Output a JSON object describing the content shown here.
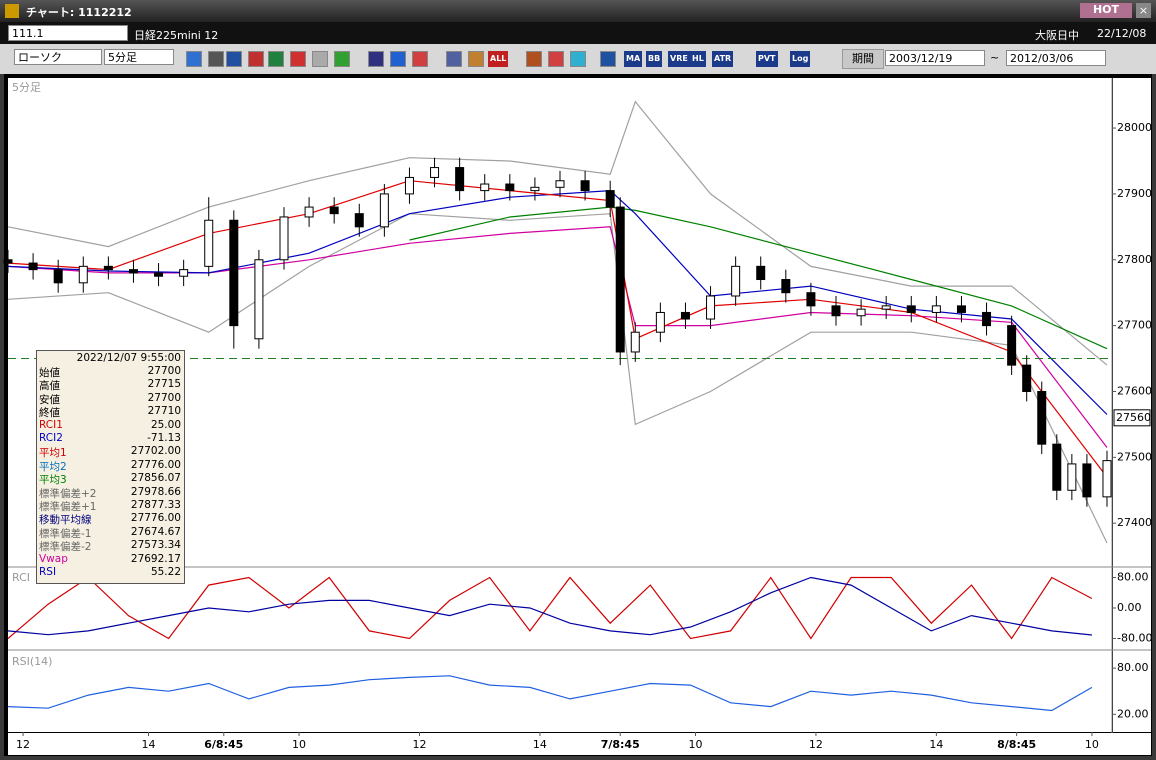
{
  "window": {
    "title": "チャート: 1112212",
    "badge": "HOT"
  },
  "toolbar1": {
    "symbol": "111.1",
    "name": "日経225mini 12",
    "session": "大阪日中",
    "date": "22/12/08"
  },
  "toolbar2": {
    "chart_type": "ローソク",
    "interval": "5分足",
    "buttons": [
      "ALL",
      "MA",
      "BB",
      "VRE",
      "HL",
      "ATR",
      "PVT",
      "Log"
    ],
    "period": "期間",
    "from": "2003/12/19",
    "tilde": "~",
    "to": "2012/03/06"
  },
  "info_box": {
    "title": "2022/12/07 9:55:00",
    "rows": [
      {
        "label": "始値",
        "value": "27700",
        "color": "#000"
      },
      {
        "label": "高値",
        "value": "27715",
        "color": "#000"
      },
      {
        "label": "安値",
        "value": "27700",
        "color": "#000"
      },
      {
        "label": "終値",
        "value": "27710",
        "color": "#000"
      },
      {
        "label": "RCI1",
        "value": "25.00",
        "color": "#d00000"
      },
      {
        "label": "RCI2",
        "value": "-71.13",
        "color": "#0000c0"
      },
      {
        "label": "平均1",
        "value": "27702.00",
        "color": "#d00000"
      },
      {
        "label": "平均2",
        "value": "27776.00",
        "color": "#0070c0"
      },
      {
        "label": "平均3",
        "value": "27856.07",
        "color": "#008000"
      },
      {
        "label": "標準偏差+2",
        "value": "27978.66",
        "color": "#666"
      },
      {
        "label": "標準偏差+1",
        "value": "27877.33",
        "color": "#666"
      },
      {
        "label": "移動平均線",
        "value": "27776.00",
        "color": "#000080"
      },
      {
        "label": "標準偏差-1",
        "value": "27674.67",
        "color": "#666"
      },
      {
        "label": "標準偏差-2",
        "value": "27573.34",
        "color": "#666"
      },
      {
        "label": "Vwap",
        "value": "27692.17",
        "color": "#d000a0"
      },
      {
        "label": "RSI",
        "value": "55.22",
        "color": "#0000c0"
      }
    ]
  },
  "chart_data": [
    {
      "type": "candlestick",
      "label": "5分足",
      "x": [
        0,
        5,
        10,
        15,
        20,
        25,
        30,
        35,
        40,
        45,
        50,
        55,
        60,
        65,
        70,
        75,
        80,
        85,
        90,
        95,
        100,
        105,
        110,
        115,
        120,
        122,
        125,
        130,
        135,
        140,
        145,
        150,
        155,
        160,
        165,
        170,
        175,
        180,
        185,
        190,
        195,
        200,
        203,
        206,
        209,
        212,
        215,
        219
      ],
      "open": [
        27800,
        27795,
        27785,
        27765,
        27790,
        27785,
        27780,
        27775,
        27790,
        27860,
        27680,
        27800,
        27865,
        27880,
        27870,
        27850,
        27900,
        27925,
        27940,
        27905,
        27915,
        27905,
        27910,
        27920,
        27905,
        27880,
        27660,
        27690,
        27720,
        27710,
        27745,
        27790,
        27770,
        27750,
        27730,
        27715,
        27725,
        27730,
        27720,
        27730,
        27720,
        27700,
        27640,
        27600,
        27520,
        27450,
        27490,
        27440
      ],
      "high": [
        27815,
        27810,
        27800,
        27805,
        27805,
        27800,
        27795,
        27800,
        27895,
        27875,
        27815,
        27880,
        27895,
        27895,
        27885,
        27915,
        27940,
        27955,
        27955,
        27930,
        27930,
        27925,
        27935,
        27935,
        27920,
        27895,
        27705,
        27735,
        27735,
        27760,
        27805,
        27805,
        27785,
        27765,
        27745,
        27740,
        27745,
        27745,
        27745,
        27745,
        27735,
        27715,
        27655,
        27615,
        27535,
        27505,
        27505,
        27510
      ],
      "low": [
        27780,
        27770,
        27750,
        27750,
        27770,
        27765,
        27760,
        27760,
        27775,
        27665,
        27665,
        27785,
        27850,
        27855,
        27835,
        27835,
        27885,
        27910,
        27890,
        27890,
        27890,
        27890,
        27895,
        27890,
        27865,
        27640,
        27645,
        27675,
        27695,
        27695,
        27730,
        27755,
        27735,
        27715,
        27700,
        27700,
        27710,
        27705,
        27705,
        27705,
        27685,
        27625,
        27585,
        27505,
        27435,
        27435,
        27425,
        27425
      ],
      "close": [
        27795,
        27785,
        27765,
        27790,
        27785,
        27780,
        27775,
        27785,
        27860,
        27700,
        27800,
        27865,
        27880,
        27870,
        27850,
        27900,
        27925,
        27940,
        27905,
        27915,
        27905,
        27910,
        27920,
        27905,
        27880,
        27660,
        27690,
        27720,
        27710,
        27745,
        27790,
        27770,
        27750,
        27730,
        27715,
        27725,
        27730,
        27720,
        27730,
        27720,
        27700,
        27640,
        27600,
        27520,
        27450,
        27490,
        27440,
        27495
      ],
      "overlay_x": [
        0,
        20,
        40,
        60,
        80,
        100,
        120,
        125,
        140,
        160,
        180,
        200,
        219
      ],
      "overlays": [
        {
          "color": "#a0a0a0",
          "values": [
            27850,
            27820,
            27880,
            27920,
            27955,
            27950,
            27930,
            28040,
            27900,
            27790,
            27760,
            27760,
            27640
          ]
        },
        {
          "color": "#a0a0a0",
          "values": [
            27740,
            27750,
            27690,
            27790,
            27870,
            27860,
            27870,
            27550,
            27600,
            27690,
            27690,
            27670,
            27370
          ]
        },
        {
          "color": "#008000",
          "values": [
            null,
            null,
            null,
            null,
            27830,
            27865,
            27880,
            27875,
            27850,
            27810,
            27770,
            27730,
            27665
          ]
        },
        {
          "color": "#d000a0",
          "values": [
            27790,
            27780,
            27780,
            27800,
            27825,
            27840,
            27850,
            27700,
            27700,
            27720,
            27715,
            27705,
            27515
          ]
        },
        {
          "color": "#0000c0",
          "values": [
            27790,
            27783,
            27780,
            27810,
            27870,
            27895,
            27905,
            27870,
            27745,
            27760,
            27725,
            27710,
            27565
          ]
        },
        {
          "color": "#e00000",
          "values": [
            27795,
            27785,
            27840,
            27870,
            27920,
            27905,
            27890,
            27680,
            27730,
            27740,
            27720,
            27660,
            27470
          ]
        }
      ],
      "xlim": [
        0,
        220
      ],
      "ylim": [
        27335,
        28076
      ],
      "yticks": [
        27400,
        27500,
        27600,
        27700,
        27800,
        27900,
        28000
      ],
      "xticks": [
        {
          "value": 3,
          "label": "12"
        },
        {
          "value": 28,
          "label": "14"
        },
        {
          "value": 43,
          "label": "6/8:45"
        },
        {
          "value": 58,
          "label": "10"
        },
        {
          "value": 82,
          "label": "12"
        },
        {
          "value": 106,
          "label": "14"
        },
        {
          "value": 122,
          "label": "7/8:45"
        },
        {
          "value": 137,
          "label": "10"
        },
        {
          "value": 161,
          "label": "12"
        },
        {
          "value": 185,
          "label": "14"
        },
        {
          "value": 201,
          "label": "8/8:45"
        },
        {
          "value": 216,
          "label": "10"
        }
      ],
      "reference_line": 27650,
      "last_price": 27560
    },
    {
      "type": "line",
      "label": "RCI",
      "x": [
        0,
        8,
        16,
        24,
        32,
        40,
        48,
        56,
        64,
        72,
        80,
        88,
        96,
        104,
        112,
        120,
        128,
        136,
        144,
        152,
        160,
        168,
        176,
        184,
        192,
        200,
        208,
        216
      ],
      "ylim": [
        -105,
        105
      ],
      "yticks": [
        {
          "value": 80,
          "label": "80.00"
        },
        {
          "value": 0,
          "label": "0.00"
        },
        {
          "value": -80,
          "label": "-80.00"
        }
      ],
      "series": [
        {
          "color": "#d00000",
          "values": [
            -80,
            10,
            80,
            -20,
            -80,
            60,
            80,
            0,
            80,
            -60,
            -80,
            20,
            80,
            -60,
            80,
            -40,
            60,
            -80,
            -60,
            80,
            -80,
            80,
            80,
            -40,
            60,
            -80,
            80,
            25
          ]
        },
        {
          "color": "#0000a0",
          "values": [
            -60,
            -70,
            -60,
            -40,
            -20,
            0,
            -10,
            10,
            20,
            20,
            0,
            -20,
            10,
            0,
            -40,
            -60,
            -70,
            -50,
            -10,
            40,
            80,
            60,
            0,
            -60,
            -20,
            -40,
            -60,
            -71
          ]
        }
      ]
    },
    {
      "type": "line",
      "label": "RSI(14)",
      "x": [
        0,
        8,
        16,
        24,
        32,
        40,
        48,
        56,
        64,
        72,
        80,
        88,
        96,
        104,
        112,
        120,
        128,
        136,
        144,
        152,
        160,
        168,
        176,
        184,
        192,
        200,
        208,
        216
      ],
      "ylim": [
        -3,
        101
      ],
      "yticks": [
        {
          "value": 80,
          "label": "80.00"
        },
        {
          "value": 20,
          "label": "20.00"
        }
      ],
      "series": [
        {
          "color": "#2060e0",
          "values": [
            30,
            28,
            45,
            55,
            50,
            60,
            40,
            55,
            58,
            65,
            68,
            70,
            58,
            55,
            40,
            50,
            60,
            58,
            35,
            30,
            50,
            45,
            50,
            45,
            35,
            30,
            25,
            55
          ]
        }
      ]
    }
  ]
}
